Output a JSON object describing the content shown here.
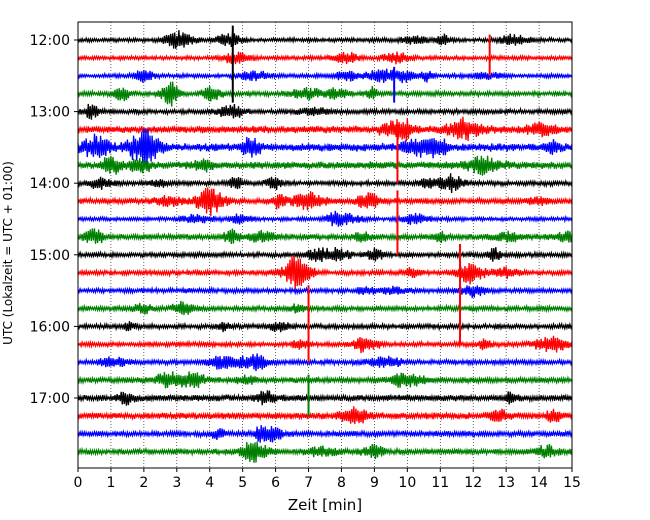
{
  "chart_data": {
    "type": "line",
    "subtype": "helicorder",
    "xlabel": "Zeit  [min]",
    "ylabel": "UTC (Lokalzeit = UTC + 01:00)",
    "xlim": [
      0,
      15
    ],
    "x_ticks": [
      "0",
      "1",
      "2",
      "3",
      "4",
      "5",
      "6",
      "7",
      "8",
      "9",
      "10",
      "11",
      "12",
      "13",
      "14",
      "15"
    ],
    "grid": "vertical dotted lines at each minute",
    "y_tick_labels": [
      "12:00",
      "13:00",
      "14:00",
      "15:00",
      "16:00",
      "17:00"
    ],
    "rows": [
      {
        "start": "12:00",
        "color": "#000000",
        "amplitude": 0.25
      },
      {
        "start": "12:15",
        "color": "#ff0000",
        "amplitude": 0.25
      },
      {
        "start": "12:30",
        "color": "#0000ff",
        "amplitude": 0.25
      },
      {
        "start": "12:45",
        "color": "#008000",
        "amplitude": 0.3
      },
      {
        "start": "13:00",
        "color": "#000000",
        "amplitude": 0.3
      },
      {
        "start": "13:15",
        "color": "#ff0000",
        "amplitude": 0.45
      },
      {
        "start": "13:30",
        "color": "#0000ff",
        "amplitude": 0.5
      },
      {
        "start": "13:45",
        "color": "#008000",
        "amplitude": 0.45
      },
      {
        "start": "14:00",
        "color": "#000000",
        "amplitude": 0.3
      },
      {
        "start": "14:15",
        "color": "#ff0000",
        "amplitude": 0.35
      },
      {
        "start": "14:30",
        "color": "#0000ff",
        "amplitude": 0.25
      },
      {
        "start": "14:45",
        "color": "#008000",
        "amplitude": 0.35
      },
      {
        "start": "15:00",
        "color": "#000000",
        "amplitude": 0.3
      },
      {
        "start": "15:15",
        "color": "#ff0000",
        "amplitude": 0.3
      },
      {
        "start": "15:30",
        "color": "#0000ff",
        "amplitude": 0.3
      },
      {
        "start": "15:45",
        "color": "#008000",
        "amplitude": 0.3
      },
      {
        "start": "16:00",
        "color": "#000000",
        "amplitude": 0.3
      },
      {
        "start": "16:15",
        "color": "#ff0000",
        "amplitude": 0.3
      },
      {
        "start": "16:30",
        "color": "#0000ff",
        "amplitude": 0.3
      },
      {
        "start": "16:45",
        "color": "#008000",
        "amplitude": 0.35
      },
      {
        "start": "17:00",
        "color": "#000000",
        "amplitude": 0.4
      },
      {
        "start": "17:15",
        "color": "#ff0000",
        "amplitude": 0.4
      },
      {
        "start": "17:30",
        "color": "#0000ff",
        "amplitude": 0.35
      },
      {
        "start": "17:45",
        "color": "#008000",
        "amplitude": 0.35
      }
    ],
    "events": [
      {
        "row": 0,
        "x_min": 4.7,
        "up": 0.8,
        "down": 3.5
      },
      {
        "row": 1,
        "x_min": 12.5,
        "up": 1.3,
        "down": 1.0
      },
      {
        "row": 2,
        "x_min": 9.6,
        "up": 0.5,
        "down": 1.5
      },
      {
        "row": 5,
        "x_min": 9.7,
        "up": 0.3,
        "down": 3.0
      },
      {
        "row": 9,
        "x_min": 9.7,
        "up": 0.6,
        "down": 3.0
      },
      {
        "row": 13,
        "x_min": 11.6,
        "up": 1.6,
        "down": 4.0
      },
      {
        "row": 17,
        "x_min": 7.0,
        "up": 3.3,
        "down": 1.0
      },
      {
        "row": 19,
        "x_min": 7.0,
        "up": 0.3,
        "down": 2.0
      }
    ]
  }
}
